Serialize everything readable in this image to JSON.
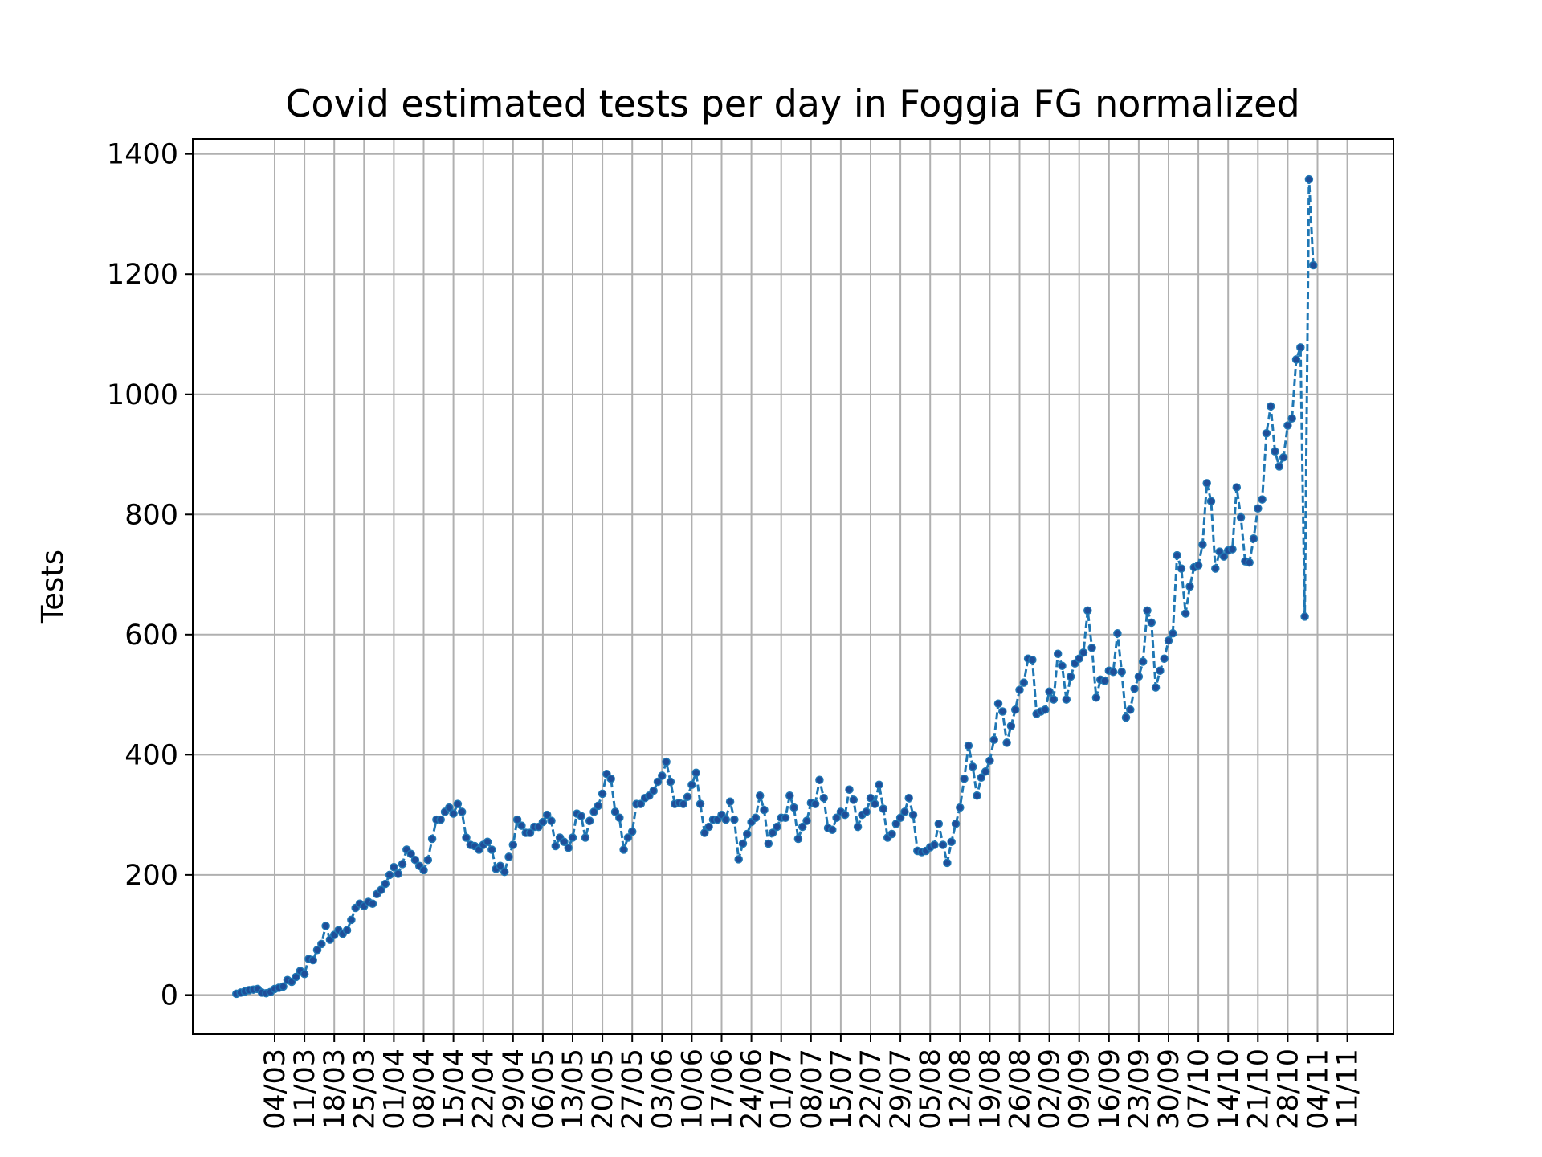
{
  "chart_data": {
    "type": "line",
    "title": "Covid estimated tests per day in Foggia FG normalized",
    "xlabel": "",
    "ylabel": "Tests",
    "ylim": [
      -65,
      1425
    ],
    "yticks": [
      0,
      200,
      400,
      600,
      800,
      1000,
      1200,
      1400
    ],
    "xticks": [
      "04/03",
      "11/03",
      "18/03",
      "25/03",
      "01/04",
      "08/04",
      "15/04",
      "22/04",
      "29/04",
      "06/05",
      "13/05",
      "20/05",
      "27/05",
      "03/06",
      "10/06",
      "17/06",
      "24/06",
      "01/07",
      "08/07",
      "15/07",
      "22/07",
      "29/07",
      "05/08",
      "12/08",
      "19/08",
      "26/08",
      "02/09",
      "09/09",
      "16/09",
      "23/09",
      "30/09",
      "07/10",
      "14/10",
      "21/10",
      "28/10",
      "04/11",
      "11/11"
    ],
    "grid": true,
    "line_style": "dashed",
    "marker": "dot",
    "colors": {
      "line": "#1f77b4",
      "marker": "#1f4e99",
      "grid": "#b0b0b0"
    },
    "x_start_date": "2020-02-24",
    "series": [
      {
        "name": "",
        "values": [
          2,
          4,
          6,
          8,
          9,
          10,
          4,
          3,
          5,
          10,
          12,
          14,
          25,
          22,
          30,
          40,
          35,
          60,
          58,
          75,
          85,
          115,
          92,
          100,
          108,
          102,
          108,
          125,
          145,
          152,
          148,
          155,
          152,
          168,
          175,
          185,
          200,
          213,
          202,
          218,
          242,
          235,
          225,
          215,
          208,
          225,
          260,
          292,
          292,
          305,
          312,
          302,
          318,
          305,
          262,
          250,
          248,
          242,
          250,
          255,
          242,
          210,
          215,
          205,
          230,
          250,
          292,
          282,
          270,
          270,
          280,
          280,
          288,
          300,
          290,
          248,
          262,
          255,
          245,
          262,
          302,
          298,
          262,
          290,
          305,
          315,
          335,
          368,
          360,
          305,
          295,
          242,
          262,
          272,
          318,
          318,
          328,
          332,
          340,
          355,
          365,
          388,
          355,
          318,
          320,
          318,
          330,
          350,
          370,
          318,
          270,
          280,
          292,
          292,
          300,
          292,
          322,
          292,
          226,
          252,
          268,
          288,
          295,
          332,
          308,
          252,
          270,
          280,
          295,
          295,
          332,
          312,
          260,
          280,
          290,
          320,
          318,
          358,
          328,
          278,
          275,
          295,
          305,
          300,
          342,
          325,
          280,
          300,
          305,
          328,
          318,
          350,
          310,
          262,
          268,
          285,
          295,
          305,
          328,
          300,
          240,
          238,
          240,
          246,
          250,
          285,
          250,
          220,
          255,
          285,
          312,
          360,
          415,
          380,
          332,
          362,
          372,
          390,
          425,
          485,
          472,
          420,
          448,
          475,
          508,
          520,
          560,
          558,
          468,
          472,
          475,
          505,
          492,
          568,
          548,
          492,
          530,
          552,
          560,
          570,
          640,
          578,
          495,
          525,
          523,
          540,
          538,
          602,
          538,
          462,
          475,
          510,
          530,
          555,
          640,
          620,
          512,
          540,
          560,
          590,
          602,
          732,
          710,
          635,
          680,
          712,
          715,
          750,
          852,
          822,
          710,
          738,
          730,
          740,
          742,
          845,
          795,
          722,
          720,
          760,
          810,
          825,
          935,
          980,
          905,
          880,
          895,
          948,
          960,
          1058,
          1078,
          630,
          1358,
          1215
        ]
      }
    ]
  }
}
